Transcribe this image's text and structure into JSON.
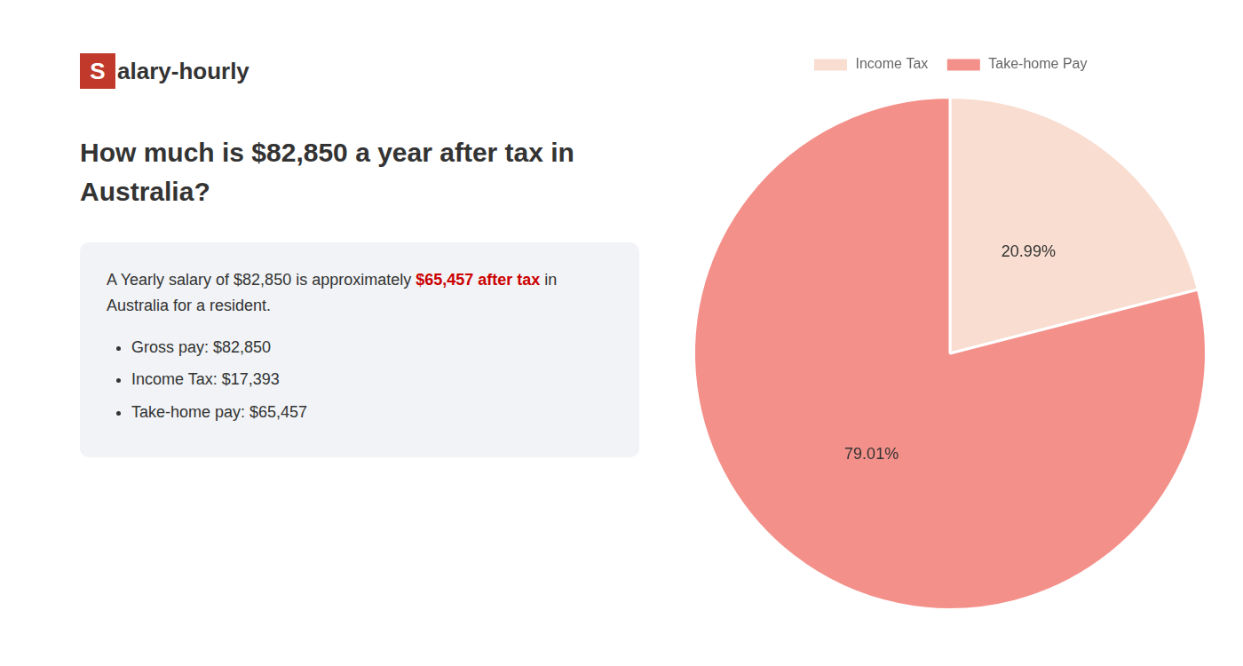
{
  "chart_data": {
    "type": "pie",
    "title": [
      "How much is $82,850 a year after tax in",
      "Australia?"
    ],
    "annotations": [
      {
        "text": "S",
        "color": "#c0392b"
      },
      "alary-hourly",
      "A Yearly salary of $82,850 is approximately ",
      {
        "text": "$65,457 after tax",
        "color": "#cc0000"
      },
      " in",
      "Australia for a resident.",
      "Gross pay: $82,850",
      "Income Tax: $17,393",
      "Take-home pay: $65,457"
    ],
    "categories": [
      "Income Tax",
      "Take-home Pay"
    ],
    "values": [
      20.99,
      79.01
    ],
    "value_labels": [
      "20.99%",
      "79.01%"
    ],
    "colors": [
      "#f8ddd0",
      "#f4908a"
    ],
    "data_labels": true,
    "legend": "top"
  }
}
